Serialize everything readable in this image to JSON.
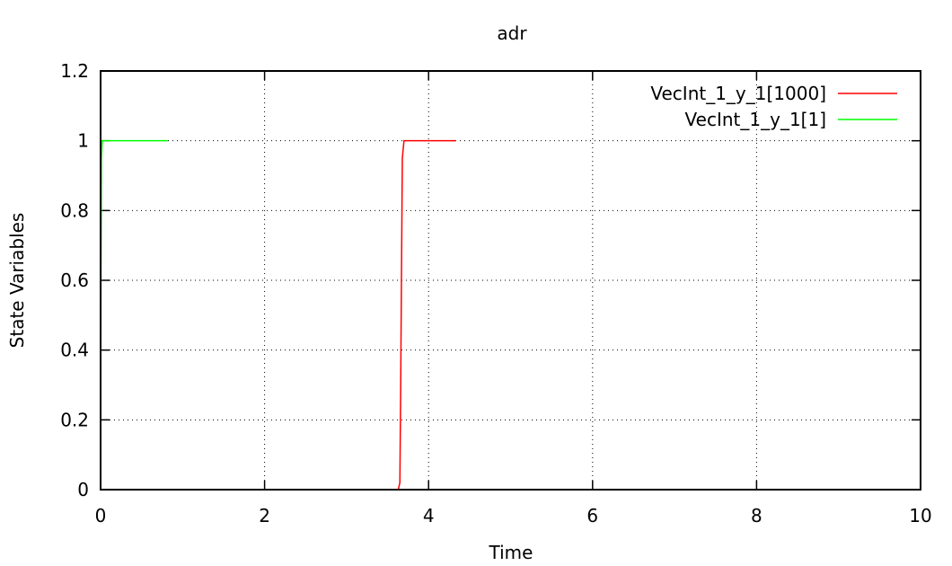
{
  "chart_data": {
    "type": "line",
    "title": "adr",
    "xlabel": "Time",
    "ylabel": "State Variables",
    "xlim": [
      0,
      10
    ],
    "ylim": [
      0,
      1.2
    ],
    "xticks": [
      0,
      2,
      4,
      6,
      8,
      10
    ],
    "yticks": [
      0,
      0.2,
      0.4,
      0.6,
      0.8,
      1,
      1.2
    ],
    "xtick_labels": [
      "0",
      "2",
      "4",
      "6",
      "8",
      "10"
    ],
    "ytick_labels": [
      "0",
      "0.2",
      "0.4",
      "0.6",
      "0.8",
      "1",
      "1.2"
    ],
    "grid": true,
    "legend_position": "top-right",
    "series": [
      {
        "name": "VecInt_1_y_1[1000]",
        "color": "#ff0000",
        "x": [
          0,
          3.63,
          3.65,
          3.66,
          3.67,
          3.68,
          3.7,
          4.33
        ],
        "y": [
          0,
          0,
          0.02,
          0.3,
          0.63,
          0.95,
          1,
          1
        ]
      },
      {
        "name": "VecInt_1_y_1[1]",
        "color": "#00ff00",
        "x": [
          0,
          0.002,
          0.005,
          0.01,
          0.02,
          0.82
        ],
        "y": [
          0,
          0.3,
          0.63,
          0.95,
          1,
          1
        ]
      }
    ]
  }
}
